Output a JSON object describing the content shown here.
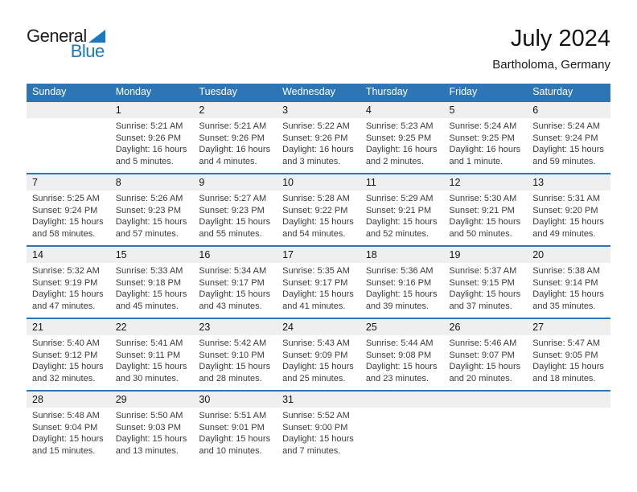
{
  "logo": {
    "general": "General",
    "blue": "Blue"
  },
  "header": {
    "title": "July 2024",
    "location": "Bartholoma, Germany"
  },
  "weekdays": [
    "Sunday",
    "Monday",
    "Tuesday",
    "Wednesday",
    "Thursday",
    "Friday",
    "Saturday"
  ],
  "colors": {
    "header_blue": "#2E75B6",
    "band_gray": "#EFEFEF",
    "logo_blue": "#1B79C4",
    "text_dark": "#3B3B3B"
  },
  "weeks": [
    {
      "cells": [
        {
          "day": "",
          "sunrise": "",
          "sunset": "",
          "daylight_line1": "",
          "daylight_line2": ""
        },
        {
          "day": "1",
          "sunrise": "Sunrise: 5:21 AM",
          "sunset": "Sunset: 9:26 PM",
          "daylight_line1": "Daylight: 16 hours",
          "daylight_line2": "and 5 minutes."
        },
        {
          "day": "2",
          "sunrise": "Sunrise: 5:21 AM",
          "sunset": "Sunset: 9:26 PM",
          "daylight_line1": "Daylight: 16 hours",
          "daylight_line2": "and 4 minutes."
        },
        {
          "day": "3",
          "sunrise": "Sunrise: 5:22 AM",
          "sunset": "Sunset: 9:26 PM",
          "daylight_line1": "Daylight: 16 hours",
          "daylight_line2": "and 3 minutes."
        },
        {
          "day": "4",
          "sunrise": "Sunrise: 5:23 AM",
          "sunset": "Sunset: 9:25 PM",
          "daylight_line1": "Daylight: 16 hours",
          "daylight_line2": "and 2 minutes."
        },
        {
          "day": "5",
          "sunrise": "Sunrise: 5:24 AM",
          "sunset": "Sunset: 9:25 PM",
          "daylight_line1": "Daylight: 16 hours",
          "daylight_line2": "and 1 minute."
        },
        {
          "day": "6",
          "sunrise": "Sunrise: 5:24 AM",
          "sunset": "Sunset: 9:24 PM",
          "daylight_line1": "Daylight: 15 hours",
          "daylight_line2": "and 59 minutes."
        }
      ]
    },
    {
      "cells": [
        {
          "day": "7",
          "sunrise": "Sunrise: 5:25 AM",
          "sunset": "Sunset: 9:24 PM",
          "daylight_line1": "Daylight: 15 hours",
          "daylight_line2": "and 58 minutes."
        },
        {
          "day": "8",
          "sunrise": "Sunrise: 5:26 AM",
          "sunset": "Sunset: 9:23 PM",
          "daylight_line1": "Daylight: 15 hours",
          "daylight_line2": "and 57 minutes."
        },
        {
          "day": "9",
          "sunrise": "Sunrise: 5:27 AM",
          "sunset": "Sunset: 9:23 PM",
          "daylight_line1": "Daylight: 15 hours",
          "daylight_line2": "and 55 minutes."
        },
        {
          "day": "10",
          "sunrise": "Sunrise: 5:28 AM",
          "sunset": "Sunset: 9:22 PM",
          "daylight_line1": "Daylight: 15 hours",
          "daylight_line2": "and 54 minutes."
        },
        {
          "day": "11",
          "sunrise": "Sunrise: 5:29 AM",
          "sunset": "Sunset: 9:21 PM",
          "daylight_line1": "Daylight: 15 hours",
          "daylight_line2": "and 52 minutes."
        },
        {
          "day": "12",
          "sunrise": "Sunrise: 5:30 AM",
          "sunset": "Sunset: 9:21 PM",
          "daylight_line1": "Daylight: 15 hours",
          "daylight_line2": "and 50 minutes."
        },
        {
          "day": "13",
          "sunrise": "Sunrise: 5:31 AM",
          "sunset": "Sunset: 9:20 PM",
          "daylight_line1": "Daylight: 15 hours",
          "daylight_line2": "and 49 minutes."
        }
      ]
    },
    {
      "cells": [
        {
          "day": "14",
          "sunrise": "Sunrise: 5:32 AM",
          "sunset": "Sunset: 9:19 PM",
          "daylight_line1": "Daylight: 15 hours",
          "daylight_line2": "and 47 minutes."
        },
        {
          "day": "15",
          "sunrise": "Sunrise: 5:33 AM",
          "sunset": "Sunset: 9:18 PM",
          "daylight_line1": "Daylight: 15 hours",
          "daylight_line2": "and 45 minutes."
        },
        {
          "day": "16",
          "sunrise": "Sunrise: 5:34 AM",
          "sunset": "Sunset: 9:17 PM",
          "daylight_line1": "Daylight: 15 hours",
          "daylight_line2": "and 43 minutes."
        },
        {
          "day": "17",
          "sunrise": "Sunrise: 5:35 AM",
          "sunset": "Sunset: 9:17 PM",
          "daylight_line1": "Daylight: 15 hours",
          "daylight_line2": "and 41 minutes."
        },
        {
          "day": "18",
          "sunrise": "Sunrise: 5:36 AM",
          "sunset": "Sunset: 9:16 PM",
          "daylight_line1": "Daylight: 15 hours",
          "daylight_line2": "and 39 minutes."
        },
        {
          "day": "19",
          "sunrise": "Sunrise: 5:37 AM",
          "sunset": "Sunset: 9:15 PM",
          "daylight_line1": "Daylight: 15 hours",
          "daylight_line2": "and 37 minutes."
        },
        {
          "day": "20",
          "sunrise": "Sunrise: 5:38 AM",
          "sunset": "Sunset: 9:14 PM",
          "daylight_line1": "Daylight: 15 hours",
          "daylight_line2": "and 35 minutes."
        }
      ]
    },
    {
      "cells": [
        {
          "day": "21",
          "sunrise": "Sunrise: 5:40 AM",
          "sunset": "Sunset: 9:12 PM",
          "daylight_line1": "Daylight: 15 hours",
          "daylight_line2": "and 32 minutes."
        },
        {
          "day": "22",
          "sunrise": "Sunrise: 5:41 AM",
          "sunset": "Sunset: 9:11 PM",
          "daylight_line1": "Daylight: 15 hours",
          "daylight_line2": "and 30 minutes."
        },
        {
          "day": "23",
          "sunrise": "Sunrise: 5:42 AM",
          "sunset": "Sunset: 9:10 PM",
          "daylight_line1": "Daylight: 15 hours",
          "daylight_line2": "and 28 minutes."
        },
        {
          "day": "24",
          "sunrise": "Sunrise: 5:43 AM",
          "sunset": "Sunset: 9:09 PM",
          "daylight_line1": "Daylight: 15 hours",
          "daylight_line2": "and 25 minutes."
        },
        {
          "day": "25",
          "sunrise": "Sunrise: 5:44 AM",
          "sunset": "Sunset: 9:08 PM",
          "daylight_line1": "Daylight: 15 hours",
          "daylight_line2": "and 23 minutes."
        },
        {
          "day": "26",
          "sunrise": "Sunrise: 5:46 AM",
          "sunset": "Sunset: 9:07 PM",
          "daylight_line1": "Daylight: 15 hours",
          "daylight_line2": "and 20 minutes."
        },
        {
          "day": "27",
          "sunrise": "Sunrise: 5:47 AM",
          "sunset": "Sunset: 9:05 PM",
          "daylight_line1": "Daylight: 15 hours",
          "daylight_line2": "and 18 minutes."
        }
      ]
    },
    {
      "cells": [
        {
          "day": "28",
          "sunrise": "Sunrise: 5:48 AM",
          "sunset": "Sunset: 9:04 PM",
          "daylight_line1": "Daylight: 15 hours",
          "daylight_line2": "and 15 minutes."
        },
        {
          "day": "29",
          "sunrise": "Sunrise: 5:50 AM",
          "sunset": "Sunset: 9:03 PM",
          "daylight_line1": "Daylight: 15 hours",
          "daylight_line2": "and 13 minutes."
        },
        {
          "day": "30",
          "sunrise": "Sunrise: 5:51 AM",
          "sunset": "Sunset: 9:01 PM",
          "daylight_line1": "Daylight: 15 hours",
          "daylight_line2": "and 10 minutes."
        },
        {
          "day": "31",
          "sunrise": "Sunrise: 5:52 AM",
          "sunset": "Sunset: 9:00 PM",
          "daylight_line1": "Daylight: 15 hours",
          "daylight_line2": "and 7 minutes."
        },
        {
          "day": "",
          "sunrise": "",
          "sunset": "",
          "daylight_line1": "",
          "daylight_line2": ""
        },
        {
          "day": "",
          "sunrise": "",
          "sunset": "",
          "daylight_line1": "",
          "daylight_line2": ""
        },
        {
          "day": "",
          "sunrise": "",
          "sunset": "",
          "daylight_line1": "",
          "daylight_line2": ""
        }
      ]
    }
  ]
}
